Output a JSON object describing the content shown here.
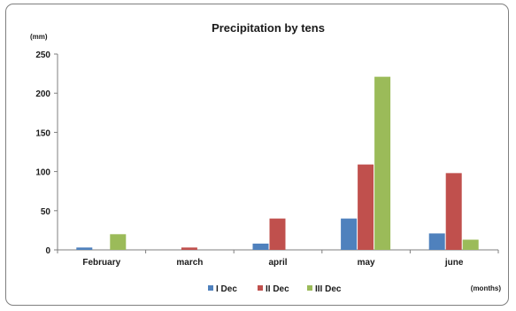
{
  "chart_data": {
    "type": "bar",
    "title": "Precipitation by tens",
    "ylabel": "(mm)",
    "xlabel": "(months)",
    "ylim": [
      0,
      250
    ],
    "yticks": [
      0,
      50,
      100,
      150,
      200,
      250
    ],
    "categories": [
      "February",
      "march",
      "april",
      "may",
      "june"
    ],
    "series": [
      {
        "name": "I Dec",
        "color": "#4f81bd",
        "values": [
          3,
          0,
          8,
          40,
          21
        ]
      },
      {
        "name": "II Dec",
        "color": "#c0504d",
        "values": [
          0,
          3,
          40,
          109,
          98
        ]
      },
      {
        "name": "III Dec",
        "color": "#9bbb59",
        "values": [
          20,
          0,
          0,
          221,
          13
        ]
      }
    ],
    "legend_position": "bottom",
    "grid": false
  }
}
